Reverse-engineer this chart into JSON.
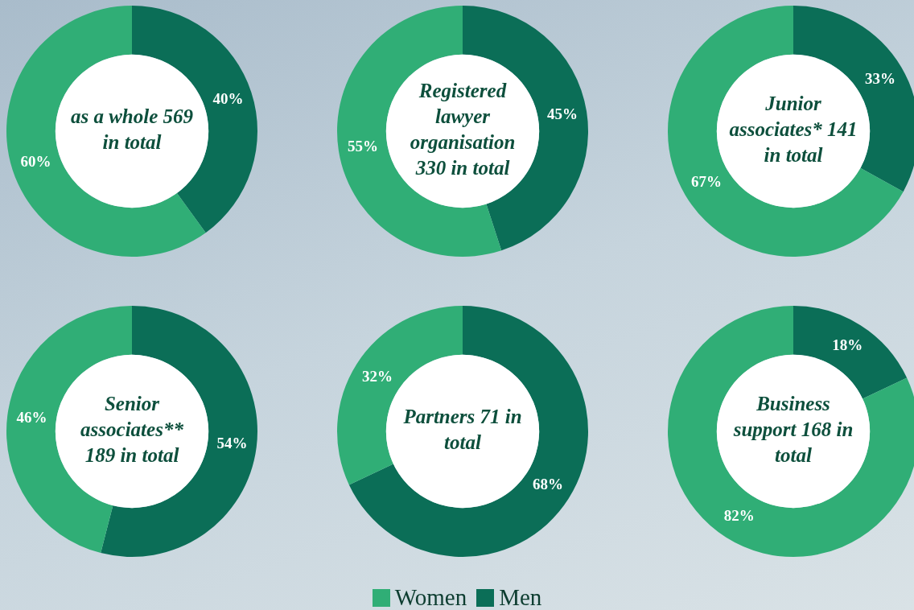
{
  "chart_data": [
    {
      "type": "donut",
      "title": "as a whole 569 in total",
      "categories": [
        "Women",
        "Men"
      ],
      "values": [
        60,
        40
      ],
      "colors": [
        "#30ae76",
        "#0b6e57"
      ],
      "value_labels": [
        "60%",
        "40%"
      ],
      "legend": "bottom"
    },
    {
      "type": "donut",
      "title": "Registered lawyer organisation 330 in total",
      "categories": [
        null,
        null
      ],
      "values": [
        55,
        45
      ],
      "colors": [
        "#30ae76",
        "#0b6e57"
      ],
      "value_labels": [
        "55%",
        "45%"
      ]
    },
    {
      "type": "donut",
      "title": "Junior associates* 141 in total",
      "categories": [
        null,
        null
      ],
      "values": [
        67,
        33
      ],
      "colors": [
        "#30ae76",
        "#0b6e57"
      ],
      "value_labels": [
        "67%",
        "33%"
      ]
    },
    {
      "type": "donut",
      "title": "Senior associates** 189 in total",
      "categories": [
        null,
        null
      ],
      "values": [
        46,
        54
      ],
      "colors": [
        "#30ae76",
        "#0b6e57"
      ],
      "value_labels": [
        "46%",
        "54%"
      ]
    },
    {
      "type": "donut",
      "title": "Partners 71 in total",
      "categories": [
        null,
        null
      ],
      "values": [
        32,
        68
      ],
      "colors": [
        "#30ae76",
        "#0b6e57"
      ],
      "value_labels": [
        "32%",
        "68%"
      ]
    },
    {
      "type": "donut",
      "title": "Business support 168 in total",
      "categories": [
        null,
        null
      ],
      "values": [
        82,
        18
      ],
      "colors": [
        "#30ae76",
        "#0b6e57"
      ],
      "value_labels": [
        "82%",
        "18%"
      ]
    }
  ]
}
